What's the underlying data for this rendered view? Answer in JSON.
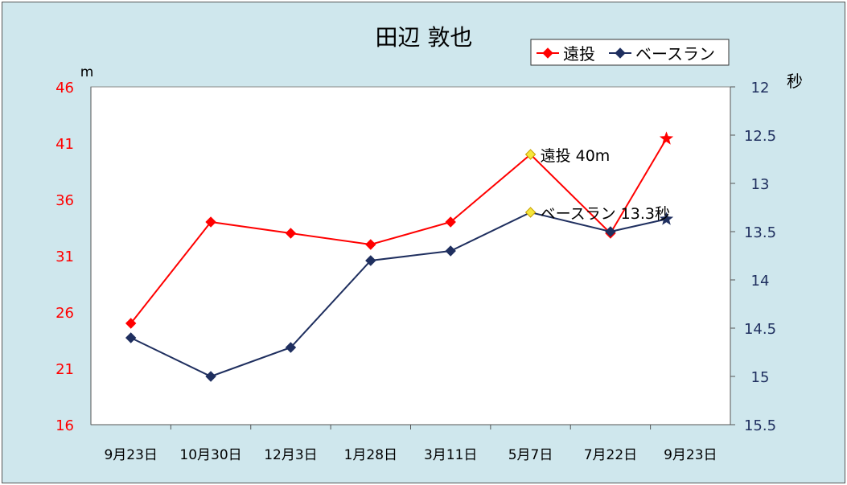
{
  "chart_data": {
    "type": "line",
    "title": "田辺 敦也",
    "categories": [
      "9月23日",
      "10月30日",
      "12月3日",
      "1月28日",
      "3月11日",
      "5月7日",
      "7月22日",
      "9月23日"
    ],
    "left_axis": {
      "unit": "m",
      "range": [
        16,
        46
      ],
      "ticks": [
        46,
        41,
        36,
        31,
        26,
        21,
        16
      ],
      "color": "#ff0000"
    },
    "right_axis": {
      "unit": "秒",
      "range": [
        12,
        15.5
      ],
      "inverted": true,
      "ticks": [
        "12",
        "12.5",
        "13",
        "13.5",
        "14",
        "14.5",
        "15",
        "15.5"
      ],
      "color": "#1f2f5f"
    },
    "legend": {
      "position": "top-right",
      "entries": [
        "遠投",
        "ベースラン"
      ]
    },
    "series": [
      {
        "name": "遠投",
        "axis": "left",
        "color": "#ff0000",
        "x": [
          0,
          1,
          2,
          3,
          4,
          5,
          6,
          6.7
        ],
        "values": [
          25,
          34,
          33,
          32,
          34,
          40,
          33,
          41.4
        ]
      },
      {
        "name": "ベースラン",
        "axis": "right",
        "color": "#1f2f5f",
        "x": [
          0,
          1,
          2,
          3,
          4,
          5,
          6,
          6.7
        ],
        "values": [
          14.6,
          15.0,
          14.7,
          13.8,
          13.7,
          13.3,
          13.5,
          13.37
        ]
      }
    ],
    "annotations": [
      {
        "series": 0,
        "index": 5,
        "text": "遠投 40m"
      },
      {
        "series": 1,
        "index": 5,
        "text": "ベースラン 13.3秒"
      }
    ],
    "highlight_color": "#f5e63c"
  }
}
